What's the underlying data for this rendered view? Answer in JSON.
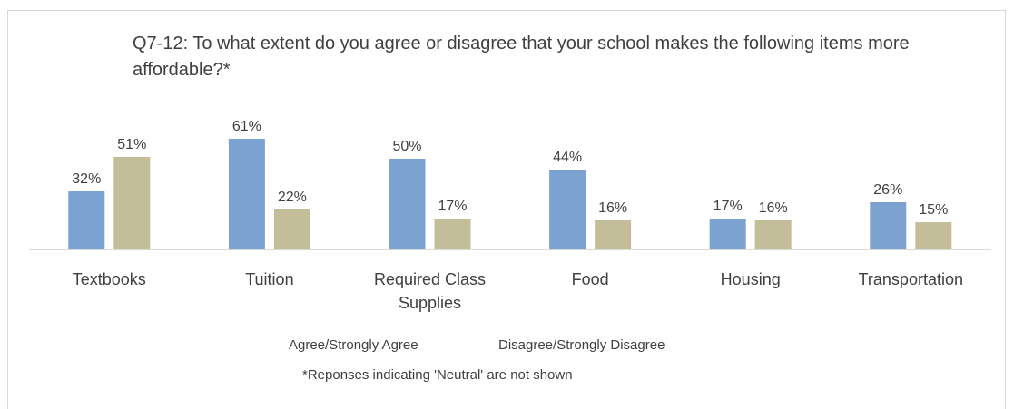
{
  "chart_data": {
    "type": "bar",
    "title": "Q7-12: To what extent do you agree or disagree that your school makes the following items more affordable?*",
    "categories": [
      "Textbooks",
      "Tuition",
      "Required Class Supplies",
      "Food",
      "Housing",
      "Transportation"
    ],
    "series": [
      {
        "name": "Agree/Strongly Agree",
        "values": [
          32,
          61,
          50,
          44,
          17,
          26
        ],
        "labels": [
          "32%",
          "61%",
          "50%",
          "44%",
          "17%",
          "26%"
        ],
        "color": "#7ba2d1"
      },
      {
        "name": "Disagree/Strongly Disagree",
        "values": [
          51,
          22,
          17,
          16,
          16,
          15
        ],
        "labels": [
          "51%",
          "22%",
          "17%",
          "16%",
          "16%",
          "15%"
        ],
        "color": "#c4bd9a"
      }
    ],
    "ylim": [
      0,
      70
    ],
    "grid": false,
    "legend_position": "bottom",
    "footnote": "*Reponses indicating 'Neutral' are not shown"
  }
}
